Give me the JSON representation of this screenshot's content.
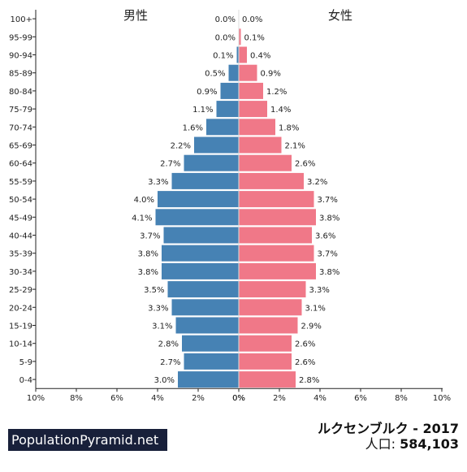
{
  "header": {
    "male_label": "男性",
    "female_label": "女性"
  },
  "footer": {
    "brand": "PopulationPyramid.net",
    "title": "ルクセンブルク - 2017",
    "population_label": "人口:",
    "population_value": "584,103"
  },
  "chart_data": {
    "type": "bar",
    "orientation": "horizontal-pyramid",
    "categories": [
      "100+",
      "95-99",
      "90-94",
      "85-89",
      "80-84",
      "75-79",
      "70-74",
      "65-69",
      "60-64",
      "55-59",
      "50-54",
      "45-49",
      "40-44",
      "35-39",
      "30-34",
      "25-29",
      "20-24",
      "15-19",
      "10-14",
      "5-9",
      "0-4"
    ],
    "series": [
      {
        "name": "男性",
        "color": "#4682b4",
        "values": [
          0.0,
          0.0,
          0.1,
          0.5,
          0.9,
          1.1,
          1.6,
          2.2,
          2.7,
          3.3,
          4.0,
          4.1,
          3.7,
          3.8,
          3.8,
          3.5,
          3.3,
          3.1,
          2.8,
          2.7,
          3.0
        ],
        "labels": [
          "0.0%",
          "0.0%",
          "0.1%",
          "0.5%",
          "0.9%",
          "1.1%",
          "1.6%",
          "2.2%",
          "2.7%",
          "3.3%",
          "4.0%",
          "4.1%",
          "3.7%",
          "3.8%",
          "3.8%",
          "3.5%",
          "3.3%",
          "3.1%",
          "2.8%",
          "2.7%",
          "3.0%"
        ]
      },
      {
        "name": "女性",
        "color": "#f07888",
        "values": [
          0.0,
          0.1,
          0.4,
          0.9,
          1.2,
          1.4,
          1.8,
          2.1,
          2.6,
          3.2,
          3.7,
          3.8,
          3.6,
          3.7,
          3.8,
          3.3,
          3.1,
          2.9,
          2.6,
          2.6,
          2.8
        ],
        "labels": [
          "0.0%",
          "0.1%",
          "0.4%",
          "0.9%",
          "1.2%",
          "1.4%",
          "1.8%",
          "2.1%",
          "2.6%",
          "3.2%",
          "3.7%",
          "3.8%",
          "3.6%",
          "3.7%",
          "3.8%",
          "3.3%",
          "3.1%",
          "2.9%",
          "2.6%",
          "2.6%",
          "2.8%"
        ]
      }
    ],
    "xlim": [
      0,
      10
    ],
    "left_ticks": [
      "10%",
      "8%",
      "6%",
      "4%",
      "2%",
      "0%"
    ],
    "right_ticks": [
      "0%",
      "2%",
      "4%",
      "6%",
      "8%",
      "10%"
    ],
    "grid": false
  }
}
